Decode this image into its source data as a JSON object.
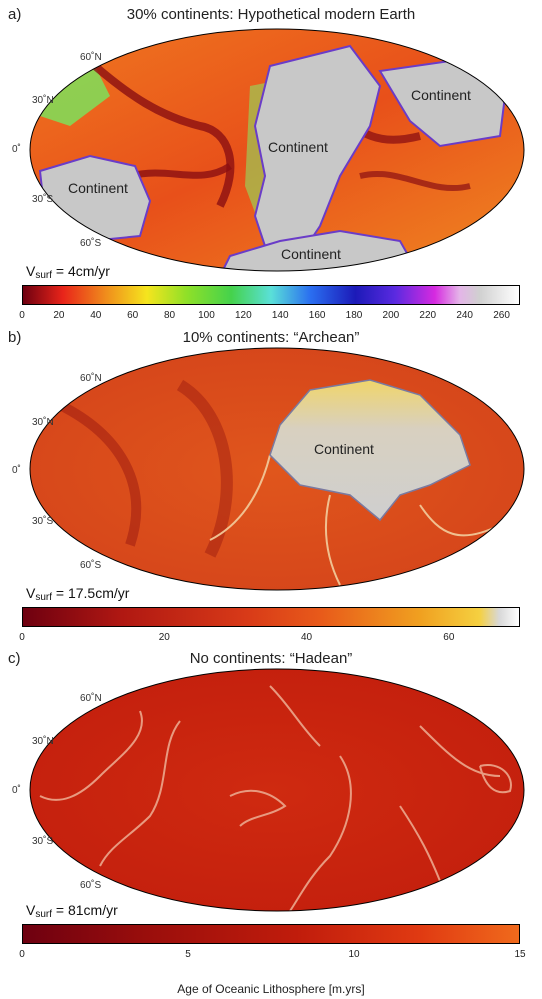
{
  "panels": [
    {
      "letter": "a)",
      "title": "30% continents: Hypothetical modern Earth",
      "lat_labels": [
        "60˚N",
        "30˚N",
        "0˚",
        "30˚S",
        "60˚S"
      ],
      "continent_labels": [
        "Continent",
        "Continent",
        "Continent",
        "Continent"
      ],
      "vsurf_symbol": "V",
      "vsurf_sub": "surf",
      "vsurf_value": "= 4cm/yr",
      "colorbar_ticks": [
        "0",
        "20",
        "40",
        "60",
        "80",
        "100",
        "120",
        "140",
        "160",
        "180",
        "200",
        "220",
        "240",
        "260"
      ],
      "colors": {
        "ocean": "#e8501a",
        "young": "#8b0f12",
        "continent": "#c8c8c8"
      }
    },
    {
      "letter": "b)",
      "title": "10% continents: “Archean”",
      "lat_labels": [
        "60˚N",
        "30˚N",
        "0˚",
        "30˚S",
        "60˚S"
      ],
      "continent_labels": [
        "Continent"
      ],
      "vsurf_symbol": "V",
      "vsurf_sub": "surf",
      "vsurf_value": "= 17.5cm/yr",
      "colorbar_ticks": [
        "0",
        "20",
        "40",
        "60"
      ],
      "colors": {
        "ocean": "#d9481b",
        "young": "#9a1810",
        "continent": "#cfcfcf"
      }
    },
    {
      "letter": "c)",
      "title": "No continents: “Hadean”",
      "lat_labels": [
        "60˚N",
        "30˚N",
        "0˚",
        "30˚S",
        "60˚S"
      ],
      "continent_labels": [],
      "vsurf_symbol": "V",
      "vsurf_sub": "surf",
      "vsurf_value": "= 81cm/yr",
      "colorbar_ticks": [
        "0",
        "5",
        "10",
        "15"
      ],
      "colors": {
        "ocean": "#c8200e",
        "young": "#8e0c0a",
        "continent": "#cccccc"
      }
    }
  ],
  "axis_label": "Age of Oceanic Lithosphere [m.yrs]"
}
